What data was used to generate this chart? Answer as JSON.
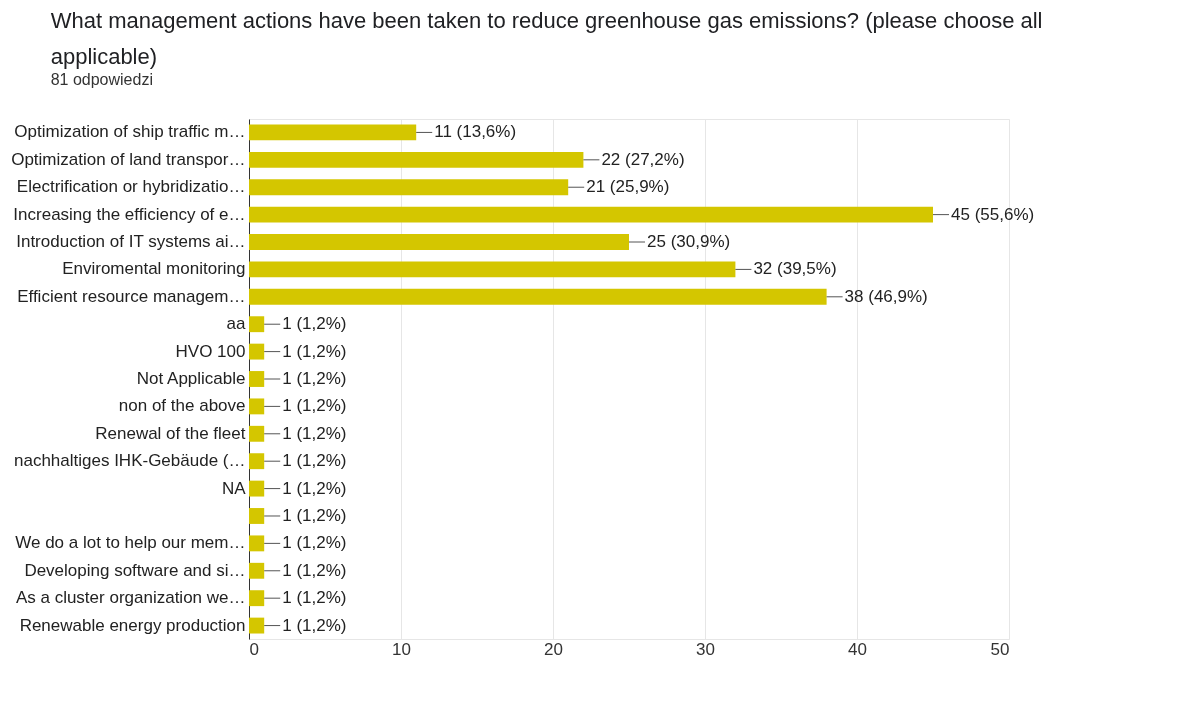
{
  "chart_data": {
    "type": "bar",
    "orientation": "horizontal",
    "title": "What management actions have been taken to reduce greenhouse gas emissions? (please choose all applicable)",
    "subtitle": "81 odpowiedzi",
    "categories": [
      "Optimization of ship traffic m…",
      "Optimization of land transpor…",
      "Electrification or hybridizatio…",
      "Increasing the efficiency of e…",
      "Introduction of IT systems ai…",
      "Enviromental monitoring",
      "Efficient resource managem…",
      "aa",
      "HVO 100",
      "Not Applicable",
      "non of the above",
      "Renewal of the fleet",
      "nachhaltiges IHK-Gebäude (…",
      "NA",
      null,
      "We do a lot to help our mem…",
      "Developing software and si…",
      "As a cluster organization we…",
      "Renewable energy production"
    ],
    "values": [
      11,
      22,
      21,
      45,
      25,
      32,
      38,
      1,
      1,
      1,
      1,
      1,
      1,
      1,
      1,
      1,
      1,
      1,
      1
    ],
    "value_labels": [
      "11 (13,6%)",
      "22 (27,2%)",
      "21 (25,9%)",
      "45 (55,6%)",
      "25 (30,9%)",
      "32 (39,5%)",
      "38 (46,9%)",
      "1 (1,2%)",
      "1 (1,2%)",
      "1 (1,2%)",
      "1 (1,2%)",
      "1 (1,2%)",
      "1 (1,2%)",
      "1 (1,2%)",
      "1 (1,2%)",
      "1 (1,2%)",
      "1 (1,2%)",
      "1 (1,2%)",
      "1 (1,2%)"
    ],
    "color": "#d4c600",
    "xlim": [
      0,
      50
    ],
    "xticks": [
      0,
      10,
      20,
      30,
      40,
      50
    ],
    "grid": "x"
  }
}
